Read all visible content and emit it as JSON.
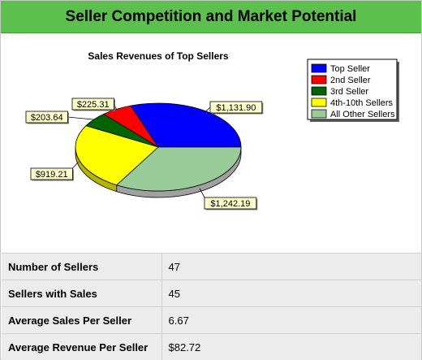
{
  "header": {
    "title": "Seller Competition and Market Potential"
  },
  "chart_data": {
    "type": "pie",
    "title": "Sales Revenues of Top Sellers",
    "legend_position": "top-right",
    "slices": [
      {
        "name": "Top Seller",
        "value": 1131.9,
        "label": "$1,131.90",
        "color": "#0000ff",
        "side": "#0000a0"
      },
      {
        "name": "2nd Seller",
        "value": 225.31,
        "label": "$225.31",
        "color": "#ff0000",
        "side": "#a00000"
      },
      {
        "name": "3rd Seller",
        "value": 203.64,
        "label": "$203.64",
        "color": "#006400",
        "side": "#003c00"
      },
      {
        "name": "4th-10th Sellers",
        "value": 919.21,
        "label": "$919.21",
        "color": "#ffff00",
        "side": "#b4b400"
      },
      {
        "name": "All Other Sellers",
        "value": 1242.19,
        "label": "$1,242.19",
        "color": "#99cc99",
        "side": "#a0a0a0"
      }
    ]
  },
  "stats": [
    {
      "label": "Number of Sellers",
      "value": "47"
    },
    {
      "label": "Sellers with Sales",
      "value": "45"
    },
    {
      "label": "Average Sales Per Seller",
      "value": "6.67"
    },
    {
      "label": "Average Revenue Per Seller",
      "value": "$82.72"
    }
  ]
}
